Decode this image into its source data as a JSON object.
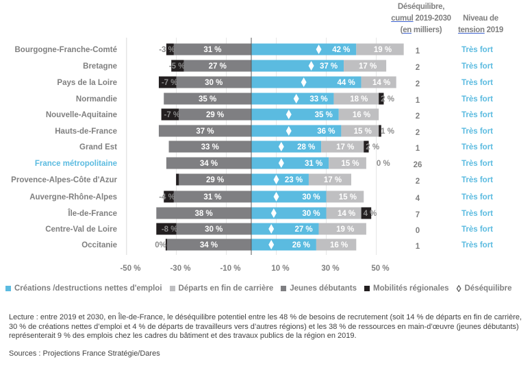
{
  "header": {
    "col_desequilibre": {
      "line1": "Déséquilibre,",
      "line2_u": "cumul",
      "line2_rest": " 2019-2030",
      "line3_pre": "(",
      "line3_u": "en",
      "line3_rest": " milliers)"
    },
    "col_tension": {
      "line1": "Niveau de",
      "line2_u": "tension",
      "line2_rest": " 2019"
    }
  },
  "colors": {
    "creations": "#5bbbe0",
    "departs": "#bfbfc1",
    "jeunes": "#7f7f82",
    "mobilites": "#231f20",
    "highlight": "#5bbbe0"
  },
  "legend": [
    {
      "key": "creations",
      "label": "Créations /destructions nettes d'emploi"
    },
    {
      "key": "departs",
      "label": "Départs en fin de carrière"
    },
    {
      "key": "jeunes",
      "label": "Jeunes débutants"
    },
    {
      "key": "mobilites",
      "label": "Mobilités régionales"
    },
    {
      "key": "desequilibre",
      "label": "Déséquilibre"
    }
  ],
  "chart_data": {
    "type": "bar",
    "orientation": "horizontal-diverging",
    "xlabel": "",
    "ylabel": "",
    "xlim": [
      -50,
      60
    ],
    "xticks": [
      -50,
      -30,
      -10,
      10,
      30,
      50
    ],
    "xtick_labels": [
      "-50 %",
      "-30 %",
      "-10 %",
      "10 %",
      "30 %",
      "50 %"
    ],
    "grid": true,
    "legend_position": "bottom",
    "categories": [
      "Bourgogne-Franche-Comté",
      "Bretagne",
      "Pays de la Loire",
      "Normandie",
      "Nouvelle-Aquitaine",
      "Hauts-de-France",
      "Grand Est",
      "France métropolitaine",
      "Provence-Alpes-Côte d'Azur",
      "Auvergne-Rhône-Alpes",
      "Île-de-France",
      "Centre-Val de Loire",
      "Occitanie"
    ],
    "highlight_category": "France métropolitaine",
    "series": [
      {
        "name": "Jeunes débutants",
        "key": "jeunes",
        "values": [
          -31,
          -27,
          -30,
          -35,
          -29,
          -37,
          -33,
          -34,
          -29,
          -31,
          -38,
          -30,
          -34
        ],
        "labels": [
          "31 %",
          "27 %",
          "30 %",
          "35 %",
          "29 %",
          "37 %",
          "33 %",
          "34 %",
          "29 %",
          "31 %",
          "38 %",
          "30 %",
          "34 %"
        ]
      },
      {
        "name": "Mobilités régionales",
        "key": "mobilites",
        "values": [
          -3,
          -5,
          -7,
          2,
          -7,
          1,
          2,
          0,
          -1,
          -4,
          4,
          -8,
          0
        ],
        "labels": [
          "-3 %",
          "-5 %",
          "-7 %",
          "2 %",
          "-7 %",
          "1 %",
          "2 %",
          "0 %",
          "",
          "-4 %",
          "4 %",
          "-8 %",
          "0%"
        ]
      },
      {
        "name": "Créations /destructions nettes d'emploi",
        "key": "creations",
        "values": [
          42,
          37,
          44,
          33,
          35,
          36,
          28,
          31,
          23,
          30,
          30,
          27,
          26
        ],
        "labels": [
          "42 %",
          "37 %",
          "44 %",
          "33 %",
          "35 %",
          "36 %",
          "28 %",
          "31 %",
          "23 %",
          "30 %",
          "30 %",
          "27 %",
          "26 %"
        ]
      },
      {
        "name": "Départs en fin de carrière",
        "key": "departs",
        "values": [
          19,
          17,
          14,
          18,
          16,
          15,
          17,
          15,
          17,
          15,
          14,
          19,
          16
        ],
        "labels": [
          "19 %",
          "17 %",
          "14 %",
          "18 %",
          "16 %",
          "15 %",
          "17 %",
          "15 %",
          "17 %",
          "15 %",
          "14 %",
          "19 %",
          "16 %"
        ]
      },
      {
        "name": "Déséquilibre",
        "key": "desequilibre",
        "values": [
          27,
          24,
          21,
          18,
          15,
          15,
          12,
          12,
          10,
          10,
          9,
          8,
          8
        ]
      }
    ],
    "desequilibre_cumul_milliers": [
      "1",
      "2",
      "2",
      "1",
      "2",
      "2",
      "1",
      "26",
      "2",
      "4",
      "7",
      "0",
      "1"
    ],
    "niveau_tension_2019": [
      "Très fort",
      "Très fort",
      "Très fort",
      "Très fort",
      "Très fort",
      "Très fort",
      "Très fort",
      "Très fort",
      "Très fort",
      "Très fort",
      "Très fort",
      "Très fort",
      "Très fort"
    ]
  },
  "note": {
    "lecture": "Lecture : entre 2019 et 2030, en Île-de-France, le déséquilibre potentiel entre les 48 % de besoins de recrutement (soit 14 % de départs en  fin de carrière, 30 % de créations nettes d’emploi et 4 % de départs de travailleurs vers d’autres régions) et les 38 % de ressources en  main-d’œuvre (jeunes débutants) représenterait 9 % des emplois chez les cadres du bâtiment et des travaux publics de la région en 2019.",
    "sources": "Sources : Projections France Stratégie/Dares"
  }
}
